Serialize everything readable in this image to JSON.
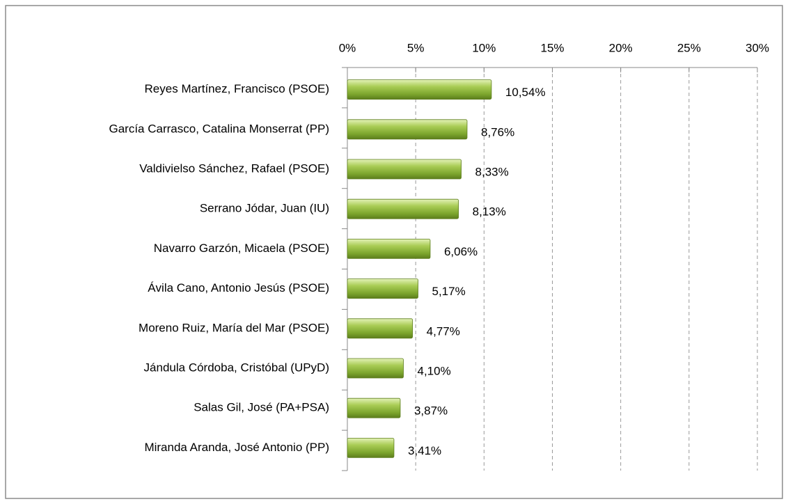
{
  "chart_data": {
    "type": "hbar",
    "categories": [
      "Reyes Martínez, Francisco (PSOE)",
      "García Carrasco, Catalina Monserrat (PP)",
      "Valdivielso Sánchez, Rafael (PSOE)",
      "Serrano Jódar, Juan (IU)",
      "Navarro Garzón, Micaela (PSOE)",
      "Ávila Cano, Antonio Jesús (PSOE)",
      "Moreno Ruiz, María del Mar (PSOE)",
      "Jándula Córdoba, Cristóbal (UPyD)",
      "Salas Gil, José (PA+PSA)",
      "Miranda Aranda, José Antonio (PP)"
    ],
    "values": [
      10.54,
      8.76,
      8.33,
      8.13,
      6.06,
      5.17,
      4.77,
      4.1,
      3.87,
      3.41
    ],
    "value_labels": [
      "10,54%",
      "8,76%",
      "8,33%",
      "8,13%",
      "6,06%",
      "5,17%",
      "4,77%",
      "4,10%",
      "3,87%",
      "3,41%"
    ],
    "color": "#8cb33a",
    "xlim": [
      0,
      30
    ],
    "xticks": [
      {
        "value": 0,
        "label": "0%"
      },
      {
        "value": 5,
        "label": "5%"
      },
      {
        "value": 10,
        "label": "10%"
      },
      {
        "value": 15,
        "label": "15%"
      },
      {
        "value": 20,
        "label": "20%"
      },
      {
        "value": 25,
        "label": "25%"
      },
      {
        "value": 30,
        "label": "30%"
      }
    ],
    "grid": true
  }
}
